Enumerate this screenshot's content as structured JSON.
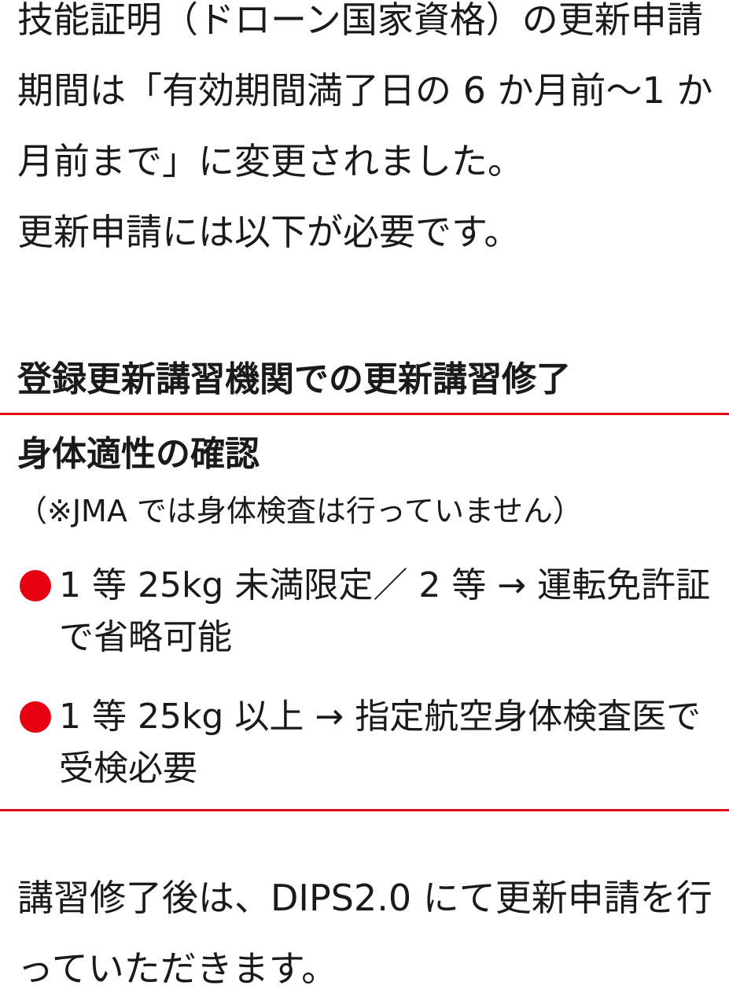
{
  "intro": [
    "技能証明（ドローン国家資格）の更新申請期間は「有効期間満了日の 6 か月前〜1 か月前まで」に変更されました。",
    "更新申請には以下が必要です。"
  ],
  "requirements": {
    "heading": "登録更新講習機関での更新講習修了",
    "title": "身体適性の確認",
    "note": "（※JMA では身体検査は行っていません）",
    "bullets": [
      "1 等 25kg 未満限定／ 2 等 → 運転免許証で省略可能",
      "1 等 25kg 以上 → 指定航空身体検査医で受検必要"
    ]
  },
  "closing": "講習修了後は、DIPS2.0 にて更新申請を行っていただきます。"
}
